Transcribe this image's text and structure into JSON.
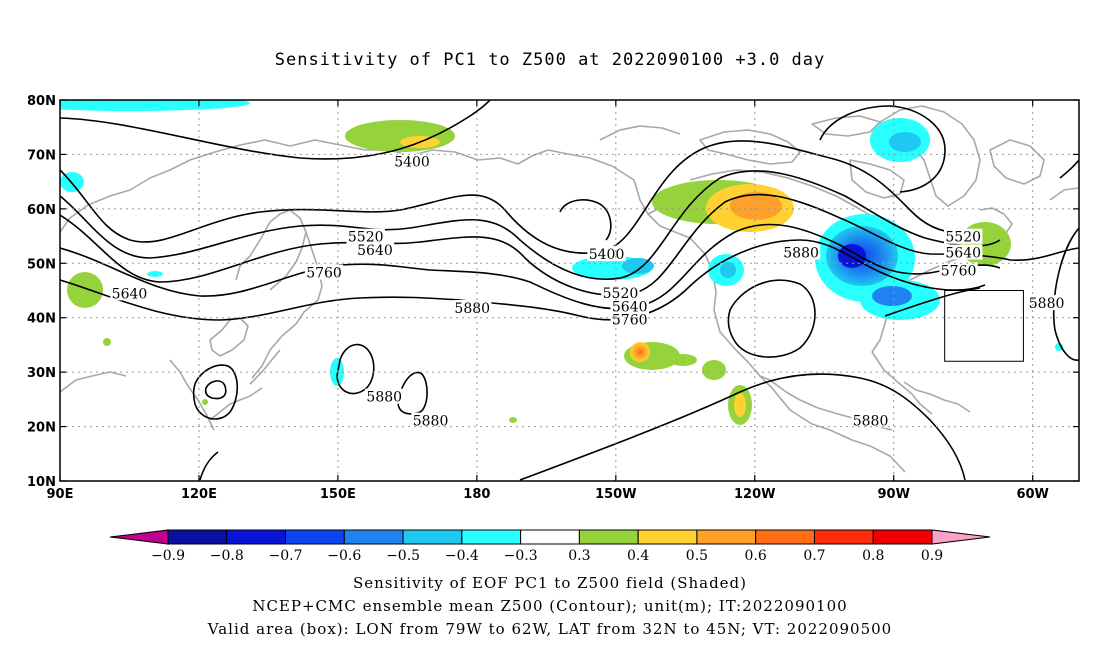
{
  "title": "Sensitivity of PC1 to Z500 at 2022090100 +3.0 day",
  "captions": [
    "Sensitivity of EOF PC1 to Z500 field (Shaded)",
    "NCEP+CMC ensemble mean Z500 (Contour); unit(m); IT:2022090100",
    "Valid area (box): LON from 79W to 62W, LAT from 32N to 45N; VT: 2022090500"
  ],
  "map": {
    "lon_range": [
      90,
      310
    ],
    "lat_range": [
      10,
      80
    ],
    "lon_ticks": [
      {
        "lon": 90,
        "label": "90E"
      },
      {
        "lon": 120,
        "label": "120E"
      },
      {
        "lon": 150,
        "label": "150E"
      },
      {
        "lon": 180,
        "label": "180"
      },
      {
        "lon": 210,
        "label": "150W"
      },
      {
        "lon": 240,
        "label": "120W"
      },
      {
        "lon": 270,
        "label": "90W"
      },
      {
        "lon": 300,
        "label": "60W"
      }
    ],
    "lat_ticks": [
      {
        "lat": 10,
        "label": "10N"
      },
      {
        "lat": 20,
        "label": "20N"
      },
      {
        "lat": 30,
        "label": "30N"
      },
      {
        "lat": 40,
        "label": "40N"
      },
      {
        "lat": 50,
        "label": "50N"
      },
      {
        "lat": 60,
        "label": "60N"
      },
      {
        "lat": 70,
        "label": "70N"
      },
      {
        "lat": 80,
        "label": "80N"
      }
    ],
    "grid": true,
    "valid_box": {
      "lon_min": 281,
      "lon_max": 298,
      "lat_min": 32,
      "lat_max": 45
    },
    "contour_labels": [
      {
        "text": "5400",
        "lon": 166,
        "lat": 68.5
      },
      {
        "text": "5520",
        "lon": 156,
        "lat": 54.7
      },
      {
        "text": "5640",
        "lon": 158,
        "lat": 52.3
      },
      {
        "text": "5640",
        "lon": 105,
        "lat": 44.3
      },
      {
        "text": "5760",
        "lon": 147,
        "lat": 48.1
      },
      {
        "text": "5880",
        "lon": 179,
        "lat": 41.6
      },
      {
        "text": "5400",
        "lon": 208,
        "lat": 51.5
      },
      {
        "text": "5520",
        "lon": 211,
        "lat": 44.4
      },
      {
        "text": "5640",
        "lon": 213,
        "lat": 41.9
      },
      {
        "text": "5760",
        "lon": 213,
        "lat": 39.5
      },
      {
        "text": "5880",
        "lon": 250,
        "lat": 51.8
      },
      {
        "text": "5520",
        "lon": 285,
        "lat": 54.7
      },
      {
        "text": "5640",
        "lon": 285,
        "lat": 51.8
      },
      {
        "text": "5760",
        "lon": 284,
        "lat": 48.5
      },
      {
        "text": "5880",
        "lon": 303,
        "lat": 42.5
      },
      {
        "text": "5880",
        "lon": 160,
        "lat": 25.3
      },
      {
        "text": "5880",
        "lon": 170,
        "lat": 20.9
      },
      {
        "text": "5880",
        "lon": 265,
        "lat": 20.9
      }
    ]
  },
  "colorbar": {
    "labels": [
      "−0.9",
      "−0.8",
      "−0.7",
      "−0.6",
      "−0.5",
      "−0.4",
      "−0.3",
      "0.3",
      "0.4",
      "0.5",
      "0.6",
      "0.7",
      "0.8",
      "0.9"
    ],
    "colors": [
      "#c0008c",
      "#0a10a0",
      "#0a14d8",
      "#0a46f0",
      "#1e82f0",
      "#1ec8f0",
      "#28ffff",
      "#ffffff",
      "#96d23c",
      "#ffd232",
      "#ffa028",
      "#ff6e14",
      "#ff2d0a",
      "#f00000",
      "#ffa0c8"
    ]
  }
}
